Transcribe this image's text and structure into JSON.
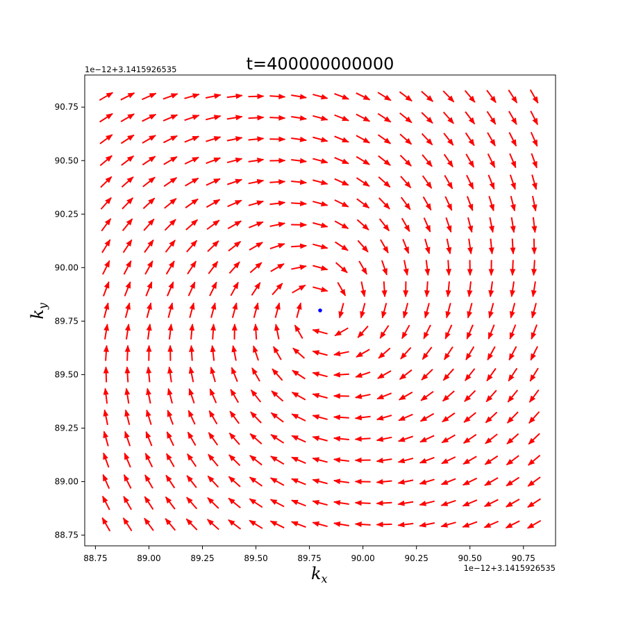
{
  "chart_data": {
    "type": "quiver",
    "title": "t=400000000000",
    "xlabel": "k",
    "xlabel_sub": "x",
    "ylabel": "k",
    "ylabel_sub": "y",
    "x_offset_text": "1e−12+3.1415926535",
    "y_offset_text": "1e−12+3.1415926535",
    "xlim": [
      88.7,
      90.9
    ],
    "ylim": [
      88.7,
      90.9
    ],
    "xticks": [
      88.75,
      89.0,
      89.25,
      89.5,
      89.75,
      90.0,
      90.25,
      90.5,
      90.75
    ],
    "xtick_labels": [
      "88.75",
      "89.00",
      "89.25",
      "89.50",
      "89.75",
      "90.00",
      "90.25",
      "90.50",
      "90.75"
    ],
    "yticks": [
      88.75,
      89.0,
      89.25,
      89.5,
      89.75,
      90.0,
      90.25,
      90.5,
      90.75
    ],
    "ytick_labels": [
      "88.75",
      "89.00",
      "89.25",
      "89.50",
      "89.75",
      "90.00",
      "90.25",
      "90.50",
      "90.75"
    ],
    "grid": {
      "x_start": 88.8,
      "x_end": 90.8,
      "nx": 21,
      "y_start": 88.8,
      "y_end": 90.8,
      "ny": 21
    },
    "field": {
      "center": [
        89.8,
        89.8
      ],
      "description_free_params_only": true,
      "rotation_deg": 75,
      "core_radius": 0.12
    },
    "arrow_color": "#ff0000",
    "critical_point": {
      "x": 89.8,
      "y": 89.8,
      "color": "#0000ff"
    },
    "grid_lines": false,
    "legend": "none"
  }
}
